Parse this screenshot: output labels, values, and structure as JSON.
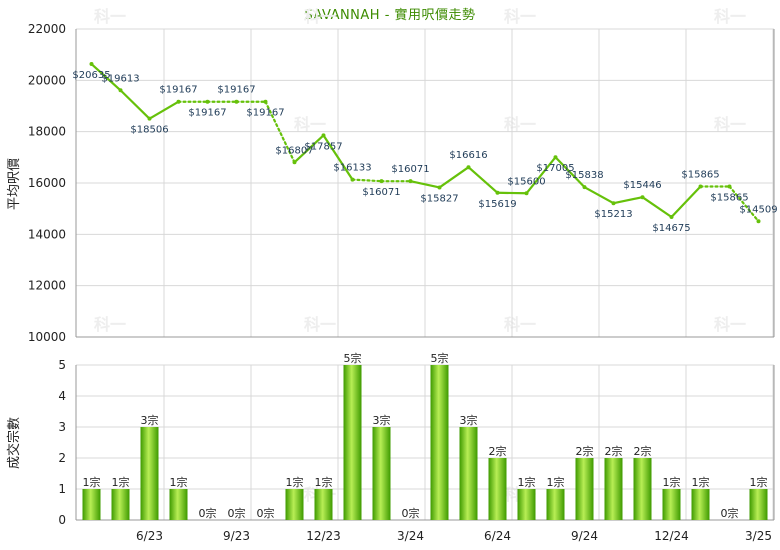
{
  "title": "SAVANNAH - 實用呎價走勢",
  "watermark": "科一",
  "colors": {
    "line": "#66c10a",
    "bar_dark": "#3e9a00",
    "bar_light": "#b8ee55",
    "title": "#3c8b00"
  },
  "chart_data": [
    {
      "type": "line",
      "ylabel": "平均呎價",
      "ylim": [
        10000,
        22000
      ],
      "yticks": [
        10000,
        12000,
        14000,
        16000,
        18000,
        20000,
        22000
      ],
      "values": [
        20635,
        19613,
        18506,
        19167,
        19167,
        19167,
        19167,
        16807,
        17857,
        16133,
        16071,
        16071,
        15827,
        16616,
        15619,
        15600,
        17005,
        15838,
        15213,
        15446,
        14675,
        15865,
        15865,
        14509
      ],
      "labels": [
        "$20635",
        "$19613",
        "$18506",
        "$19167",
        "$19167",
        "$19167",
        "$19167",
        "$16807",
        "$17857",
        "$16133",
        "$16071",
        "$16071",
        "$15827",
        "$16616",
        "$15619",
        "$15600",
        "$17005",
        "$15838",
        "$15213",
        "$15446",
        "$14675",
        "$15865",
        "$15865",
        "$14509"
      ],
      "interpolated": [
        false,
        false,
        false,
        false,
        true,
        false,
        true,
        false,
        false,
        false,
        true,
        false,
        false,
        false,
        false,
        false,
        false,
        false,
        false,
        false,
        false,
        false,
        true,
        false
      ]
    },
    {
      "type": "bar",
      "ylabel": "成交宗數",
      "ylim": [
        0,
        5
      ],
      "yticks": [
        0,
        1,
        2,
        3,
        4,
        5
      ],
      "values": [
        1,
        1,
        3,
        1,
        0,
        0,
        0,
        1,
        1,
        5,
        3,
        0,
        5,
        3,
        2,
        1,
        1,
        2,
        2,
        2,
        1,
        1,
        0,
        1
      ],
      "labels": [
        "1宗",
        "1宗",
        "3宗",
        "1宗",
        "0宗",
        "0宗",
        "0宗",
        "1宗",
        "1宗",
        "5宗",
        "3宗",
        "0宗",
        "5宗",
        "3宗",
        "2宗",
        "1宗",
        "1宗",
        "2宗",
        "2宗",
        "2宗",
        "1宗",
        "1宗",
        "0宗",
        "1宗"
      ],
      "xticks": [
        {
          "index": 2,
          "label": "6/23"
        },
        {
          "index": 5,
          "label": "9/23"
        },
        {
          "index": 8,
          "label": "12/23"
        },
        {
          "index": 11,
          "label": "3/24"
        },
        {
          "index": 14,
          "label": "6/24"
        },
        {
          "index": 17,
          "label": "9/24"
        },
        {
          "index": 20,
          "label": "12/24"
        },
        {
          "index": 23,
          "label": "3/25"
        }
      ]
    }
  ]
}
